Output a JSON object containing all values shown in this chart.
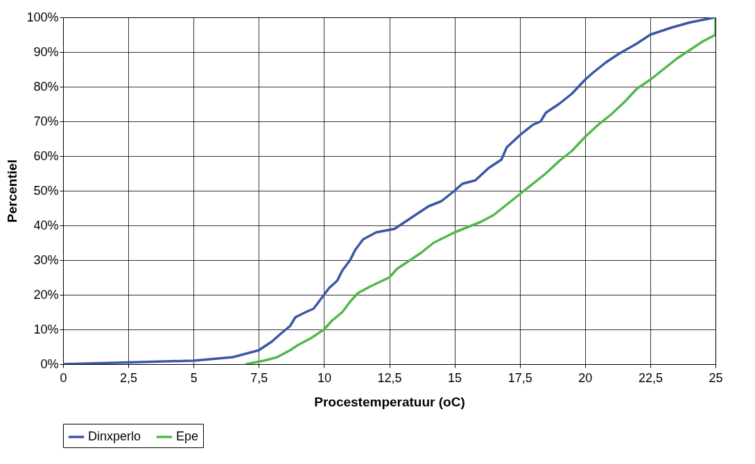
{
  "chart_data": {
    "type": "line",
    "xlabel": "Procestemperatuur (oC)",
    "ylabel": "Percentiel",
    "series": [
      {
        "name": "Dinxperlo",
        "color": "#3a56a5",
        "x": [
          0,
          2.5,
          5,
          6.5,
          7.5,
          8,
          8.3,
          8.7,
          8.9,
          9.3,
          9.6,
          10,
          10.2,
          10.5,
          10.7,
          11,
          11.2,
          11.5,
          12,
          12.7,
          13,
          13.5,
          14,
          14.5,
          15,
          15.3,
          15.8,
          16.3,
          16.8,
          17,
          17.5,
          18,
          18.3,
          18.5,
          19,
          19.5,
          20,
          20.3,
          20.8,
          21.3,
          22,
          22.5,
          23.3,
          24,
          25
        ],
        "values": [
          0,
          0.5,
          1,
          2,
          4,
          6.5,
          8.5,
          11,
          13.5,
          15,
          16,
          20,
          22,
          24,
          27,
          30,
          33,
          36,
          38,
          39,
          40.5,
          43,
          45.5,
          47,
          50,
          52,
          53,
          56.5,
          59,
          62.5,
          66,
          69,
          70,
          72.5,
          75,
          78,
          82,
          84,
          87,
          89.5,
          92.5,
          95,
          97,
          98.5,
          100
        ]
      },
      {
        "name": "Epe",
        "color": "#50b848",
        "x": [
          7,
          7.7,
          8.2,
          8.7,
          9,
          9.5,
          10,
          10.3,
          10.7,
          11,
          11.3,
          11.8,
          12.5,
          12.8,
          13.2,
          13.7,
          14.2,
          15,
          15.5,
          16,
          16.5,
          17,
          17.5,
          18,
          18.5,
          19,
          19.5,
          20,
          20.5,
          21,
          21.5,
          22,
          22.5,
          23,
          23.5,
          24,
          24.5,
          25,
          25
        ],
        "values": [
          0,
          1,
          2,
          4,
          5.5,
          7.5,
          10,
          12.5,
          15,
          18,
          20.5,
          22.5,
          25,
          27.5,
          29.5,
          32,
          35,
          38,
          39.5,
          41,
          43,
          46,
          49,
          52,
          55,
          58.5,
          61.5,
          65.5,
          69,
          72,
          75.5,
          79.5,
          82,
          85,
          88,
          90.5,
          93,
          95,
          100
        ]
      }
    ],
    "xlim": [
      0,
      25
    ],
    "xticks": [
      0,
      {
        "value": 2.5,
        "label": "2,5"
      },
      5,
      {
        "value": 7.5,
        "label": "7,5"
      },
      10,
      {
        "value": 12.5,
        "label": "12,5"
      },
      15,
      {
        "value": 17.5,
        "label": "17,5"
      },
      20,
      {
        "value": 22.5,
        "label": "22,5"
      },
      25
    ],
    "ylim": [
      0,
      100
    ],
    "yticks": [
      {
        "value": 0,
        "label": "0%"
      },
      {
        "value": 10,
        "label": "10%"
      },
      {
        "value": 20,
        "label": "20%"
      },
      {
        "value": 30,
        "label": "30%"
      },
      {
        "value": 40,
        "label": "40%"
      },
      {
        "value": 50,
        "label": "50%"
      },
      {
        "value": 60,
        "label": "60%"
      },
      {
        "value": 70,
        "label": "70%"
      },
      {
        "value": 80,
        "label": "80%"
      },
      {
        "value": 90,
        "label": "90%"
      },
      {
        "value": 100,
        "label": "100%"
      }
    ],
    "grid": true,
    "legend": "bottom"
  }
}
